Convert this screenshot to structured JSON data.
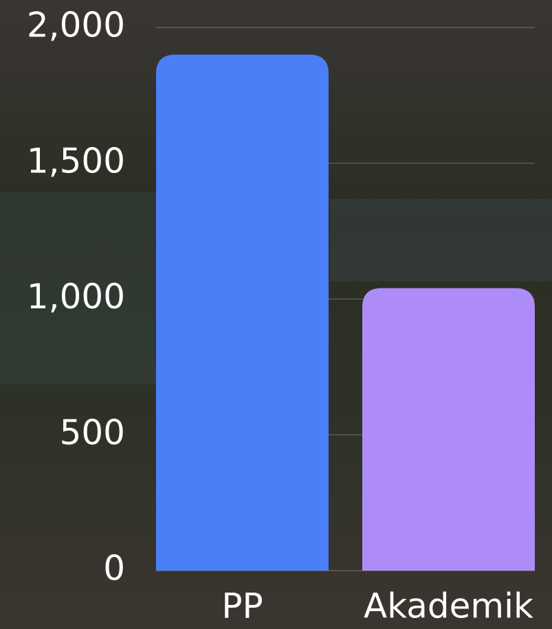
{
  "chart_data": {
    "type": "bar",
    "categories": [
      "PP",
      "Akademik"
    ],
    "values": [
      1900,
      1040
    ],
    "colors": [
      "#4a7ff7",
      "#ad8cf7"
    ],
    "ylim": [
      0,
      2000
    ],
    "yticks": [
      0,
      500,
      {
        "value": 1000,
        "label": "1,000"
      },
      {
        "value": 1500,
        "label": "1,500"
      },
      {
        "value": 2000,
        "label": "2,000"
      }
    ],
    "grid": true
  }
}
